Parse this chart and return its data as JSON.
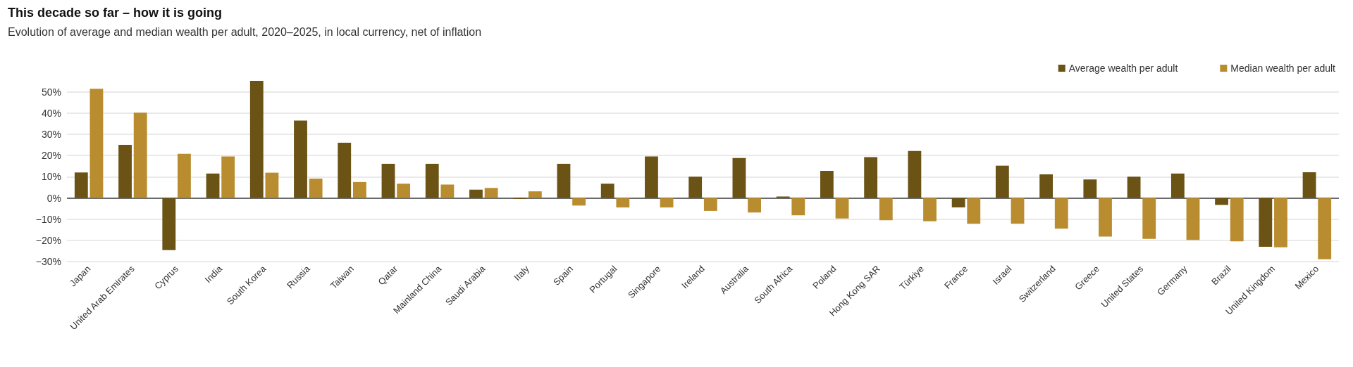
{
  "chart_data": {
    "type": "bar",
    "title": "This decade so far – how it is going",
    "subtitle": "Evolution of average and median wealth per adult, 2020–2025, in local currency, net of inflation",
    "categories": [
      "Japan",
      "United Arab Emirates",
      "Cyprus",
      "India",
      "South Korea",
      "Russia",
      "Taiwan",
      "Qatar",
      "Mainland China",
      "Saudi Arabia",
      "Italy",
      "Spain",
      "Portugal",
      "Singapore",
      "Ireland",
      "Australia",
      "South Africa",
      "Poland",
      "Hong Kong SAR",
      "Türkiye",
      "France",
      "Israel",
      "Switzerland",
      "Greece",
      "United States",
      "Germany",
      "Brazil",
      "United Kingdom",
      "Mexico"
    ],
    "series": [
      {
        "name": "Average wealth per adult",
        "color": "#6b5215",
        "values": [
          12,
          25,
          -24.6,
          11.5,
          55.2,
          36.5,
          26,
          16.1,
          16.1,
          3.9,
          -0.5,
          16.1,
          6.7,
          19.6,
          10,
          18.8,
          0.7,
          12.8,
          19.2,
          22.1,
          -4.5,
          15.2,
          11.1,
          8.7,
          10,
          11.5,
          -3.3,
          -23,
          12.1
        ]
      },
      {
        "name": "Median wealth per adult",
        "color": "#b88c2f",
        "values": [
          51.5,
          40.2,
          20.8,
          19.6,
          11.9,
          9.1,
          7.5,
          6.7,
          6.3,
          4.7,
          3.1,
          -3.6,
          -4.5,
          -4.5,
          -6.1,
          -6.9,
          -8.2,
          -9.7,
          -10.5,
          -11,
          -12.2,
          -12.2,
          -14.5,
          -18.2,
          -19.3,
          -19.8,
          -20.5,
          -23.3,
          -28.9
        ]
      }
    ],
    "ylim": [
      -30,
      55.2
    ],
    "yticks": [
      {
        "value": -30,
        "label": "−30%"
      },
      {
        "value": -20,
        "label": "−20%"
      },
      {
        "value": -10,
        "label": "−10%"
      },
      {
        "value": 0,
        "label": "0%"
      },
      {
        "value": 10,
        "label": "10%"
      },
      {
        "value": 20,
        "label": "20%"
      },
      {
        "value": 30,
        "label": "30%"
      },
      {
        "value": 40,
        "label": "40%"
      },
      {
        "value": 50,
        "label": "50%"
      }
    ],
    "grid": "y",
    "legend": "top right"
  }
}
